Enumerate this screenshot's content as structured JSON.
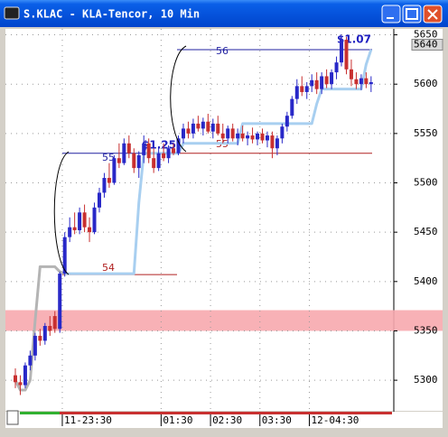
{
  "chart_data": {
    "type": "candlestick",
    "title": "S.KLAC - KLA-Tencor, 10 Min",
    "categories": [
      null,
      null,
      null,
      null,
      null,
      null,
      null,
      null,
      null,
      null,
      "11-23:30",
      null,
      null,
      null,
      null,
      null,
      null,
      null,
      null,
      null,
      null,
      null,
      null,
      null,
      null,
      null,
      null,
      null,
      null,
      null,
      "01:30",
      null,
      null,
      null,
      null,
      null,
      null,
      null,
      null,
      null,
      "02:30",
      null,
      null,
      null,
      null,
      null,
      null,
      null,
      null,
      null,
      "03:30",
      null,
      null,
      null,
      null,
      null,
      null,
      null,
      null,
      null,
      "12-04:30",
      null,
      null,
      null,
      null,
      null,
      null,
      null,
      null,
      null,
      null,
      null,
      null
    ],
    "open": [
      5305,
      5298,
      5295,
      5315,
      5325,
      5345,
      5340,
      5355,
      5365,
      5352,
      5408,
      5445,
      5455,
      5452,
      5470,
      5455,
      5450,
      5475,
      5490,
      5505,
      5500,
      5525,
      5520,
      5540,
      5530,
      5515,
      5528,
      5540,
      5525,
      5515,
      5530,
      5525,
      5535,
      5530,
      5545,
      5555,
      5550,
      5560,
      5555,
      5562,
      5552,
      5560,
      5550,
      5545,
      5555,
      5545,
      5550,
      5545,
      5548,
      5544,
      5550,
      5543,
      5548,
      5535,
      5545,
      5557,
      5568,
      5585,
      5598,
      5592,
      5598,
      5604,
      5595,
      5608,
      5600,
      5612,
      5622,
      5645,
      5615,
      5605,
      5600,
      5606,
      5600
    ],
    "high": [
      5312,
      5305,
      5318,
      5330,
      5348,
      5352,
      5358,
      5365,
      5370,
      5410,
      5450,
      5465,
      5470,
      5475,
      5478,
      5465,
      5480,
      5495,
      5510,
      5520,
      5528,
      5540,
      5545,
      5548,
      5535,
      5532,
      5548,
      5545,
      5535,
      5535,
      5540,
      5538,
      5540,
      5548,
      5560,
      5562,
      5565,
      5568,
      5566,
      5570,
      5565,
      5568,
      5560,
      5558,
      5560,
      5555,
      5558,
      5552,
      5556,
      5552,
      5555,
      5552,
      5552,
      5548,
      5560,
      5572,
      5588,
      5605,
      5608,
      5602,
      5610,
      5612,
      5612,
      5615,
      5615,
      5628,
      5648,
      5648,
      5625,
      5612,
      5610,
      5612,
      5608
    ],
    "low": [
      5292,
      5285,
      5292,
      5310,
      5320,
      5335,
      5336,
      5345,
      5348,
      5348,
      5405,
      5440,
      5448,
      5448,
      5450,
      5440,
      5448,
      5470,
      5485,
      5495,
      5498,
      5515,
      5518,
      5525,
      5510,
      5505,
      5520,
      5520,
      5510,
      5512,
      5522,
      5520,
      5528,
      5528,
      5540,
      5545,
      5545,
      5552,
      5548,
      5550,
      5545,
      5548,
      5540,
      5540,
      5542,
      5538,
      5542,
      5538,
      5540,
      5538,
      5540,
      5536,
      5525,
      5528,
      5540,
      5552,
      5565,
      5580,
      5588,
      5585,
      5592,
      5590,
      5590,
      5596,
      5595,
      5605,
      5618,
      5610,
      5598,
      5595,
      5594,
      5596,
      5592
    ],
    "close": [
      5298,
      5295,
      5315,
      5325,
      5345,
      5340,
      5355,
      5350,
      5352,
      5408,
      5445,
      5455,
      5452,
      5470,
      5455,
      5450,
      5475,
      5490,
      5505,
      5500,
      5525,
      5520,
      5540,
      5530,
      5515,
      5528,
      5540,
      5525,
      5515,
      5530,
      5525,
      5535,
      5530,
      5545,
      5555,
      5550,
      5560,
      5555,
      5562,
      5552,
      5560,
      5550,
      5545,
      5555,
      5545,
      5550,
      5545,
      5548,
      5544,
      5550,
      5543,
      5548,
      5535,
      5545,
      5557,
      5568,
      5585,
      5598,
      5592,
      5598,
      5604,
      5595,
      5608,
      5600,
      5612,
      5622,
      5645,
      5615,
      5605,
      5600,
      5606,
      5600,
      5602
    ],
    "up_color": "#2828c8",
    "down_color": "#c83030",
    "lines": [
      {
        "color": "#b4b4b4",
        "values": [
          5300,
          5290,
          5290,
          5300,
          5360,
          5415,
          5415,
          5415,
          5415,
          5410,
          5408,
          null,
          null,
          null,
          null,
          null,
          null,
          null,
          null,
          null,
          null,
          null,
          null,
          null,
          null,
          null,
          null,
          null,
          null,
          null,
          null,
          null,
          null,
          null,
          null,
          null,
          null,
          null,
          null,
          null,
          null,
          null,
          null,
          null,
          null,
          null,
          null,
          null,
          null,
          null,
          null,
          null,
          null,
          null,
          null,
          null,
          null,
          null,
          null,
          null,
          null,
          null,
          null,
          null,
          null,
          null,
          null,
          null,
          null,
          null,
          null,
          null,
          null
        ]
      },
      {
        "color": "#a8cff0",
        "values": [
          null,
          null,
          null,
          null,
          null,
          null,
          null,
          null,
          null,
          null,
          5408,
          5408,
          5408,
          5408,
          5408,
          5408,
          5408,
          5408,
          5408,
          5408,
          5408,
          5408,
          5408,
          5408,
          5408,
          5480,
          5530,
          5530,
          5530,
          5530,
          5530,
          5530,
          5530,
          5530,
          5540,
          5540,
          5540,
          5540,
          5540,
          5540,
          5540,
          5540,
          5540,
          5540,
          5540,
          5540,
          5560,
          5560,
          5560,
          5560,
          5560,
          5560,
          5560,
          5560,
          5560,
          5560,
          5560,
          5560,
          5560,
          5560,
          5560,
          5580,
          5595,
          5595,
          5595,
          5595,
          5595,
          5595,
          5595,
          5595,
          5595,
          5620,
          5635
        ]
      }
    ],
    "levels": [
      {
        "label": "55",
        "value": 5530,
        "color": "#2020a0"
      },
      {
        "label": "54",
        "value": 5407,
        "color": "#b02020"
      },
      {
        "label": "56",
        "value": 5635,
        "color": "#2020a0"
      },
      {
        "label": "55",
        "value": 5530,
        "color": "#b02020"
      }
    ],
    "annotations": [
      "$1.25",
      "$1.07"
    ],
    "band": [
      5350,
      5371
    ],
    "band_color": "#f7a8ae",
    "last_price": 5640,
    "ylim": [
      5269,
      5656
    ],
    "yticks": [
      5300,
      5350,
      5400,
      5450,
      5500,
      5550,
      5600,
      5650
    ],
    "grid": true
  }
}
